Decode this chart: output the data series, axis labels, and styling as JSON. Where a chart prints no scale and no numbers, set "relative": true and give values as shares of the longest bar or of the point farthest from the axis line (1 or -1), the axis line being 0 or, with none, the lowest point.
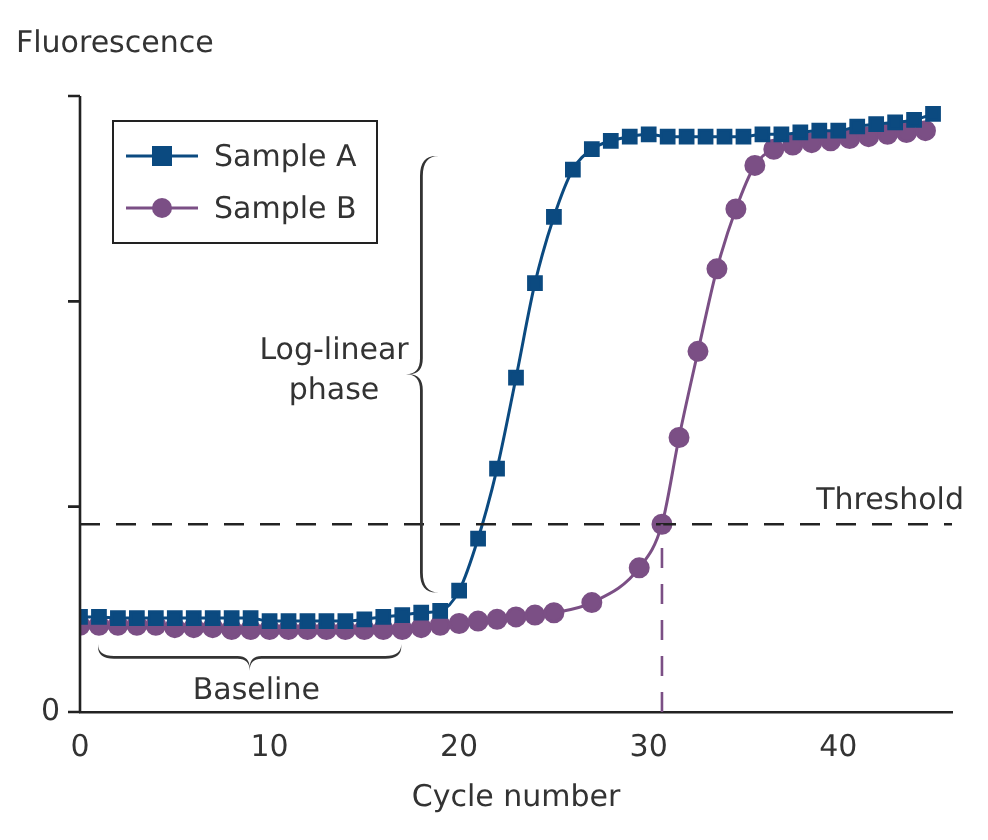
{
  "chart_data": {
    "type": "line",
    "ylabel": "Fluorescence",
    "xlabel": "Cycle number",
    "relative": true,
    "xlim": [
      0,
      46
    ],
    "xticks": [
      0,
      10,
      20,
      30,
      40
    ],
    "grid": false,
    "legend": "top left",
    "line_style": "solid",
    "series": [
      {
        "name": "Sample A",
        "color": "#0b4a80",
        "marker": "square",
        "x": [
          0,
          1,
          2,
          3,
          4,
          5,
          6,
          7,
          8,
          9,
          10,
          11,
          12,
          13,
          14,
          15,
          16,
          17,
          18,
          19,
          20,
          21,
          22,
          23,
          24,
          25,
          26,
          27,
          28,
          29,
          30,
          31,
          32,
          33,
          34,
          35,
          36,
          37,
          38,
          39,
          40,
          41,
          42,
          43,
          44,
          45
        ],
        "values": [
          0.159,
          0.159,
          0.157,
          0.157,
          0.157,
          0.157,
          0.157,
          0.157,
          0.157,
          0.157,
          0.152,
          0.152,
          0.152,
          0.152,
          0.152,
          0.155,
          0.159,
          0.162,
          0.166,
          0.169,
          0.203,
          0.29,
          0.407,
          0.559,
          0.717,
          0.828,
          0.907,
          0.941,
          0.955,
          0.962,
          0.966,
          0.962,
          0.962,
          0.962,
          0.962,
          0.962,
          0.966,
          0.966,
          0.969,
          0.972,
          0.972,
          0.979,
          0.983,
          0.986,
          0.99,
          1.0
        ]
      },
      {
        "name": "Sample B",
        "color": "#7b4f85",
        "marker": "circle",
        "x": [
          0,
          1,
          2,
          3,
          4,
          5,
          6,
          7,
          8,
          9,
          10,
          11,
          12,
          13,
          14,
          15,
          16,
          17,
          18,
          19,
          20,
          21,
          22,
          23,
          24,
          25,
          27,
          29.5,
          30.7,
          31.6,
          32.6,
          33.6,
          34.6,
          35.6,
          36.6,
          37.6,
          38.6,
          39.6,
          40.6,
          41.6,
          42.6,
          43.6,
          44.6
        ],
        "values": [
          0.145,
          0.145,
          0.145,
          0.145,
          0.145,
          0.141,
          0.141,
          0.141,
          0.138,
          0.138,
          0.138,
          0.138,
          0.138,
          0.138,
          0.138,
          0.138,
          0.138,
          0.138,
          0.141,
          0.145,
          0.148,
          0.152,
          0.155,
          0.159,
          0.162,
          0.166,
          0.183,
          0.241,
          0.314,
          0.459,
          0.603,
          0.741,
          0.841,
          0.914,
          0.941,
          0.948,
          0.952,
          0.955,
          0.959,
          0.962,
          0.966,
          0.969,
          0.972
        ]
      }
    ],
    "ref_lines": [
      {
        "axis": "y",
        "value": 0.314,
        "label": "Threshold",
        "color": "#222222",
        "line_style": "dashed"
      },
      {
        "axis": "x",
        "value": 30.7,
        "color": "#7b4f85",
        "line_style": "dashed"
      }
    ],
    "annotations": [
      "Log-linear phase",
      "Baseline",
      "0"
    ]
  }
}
